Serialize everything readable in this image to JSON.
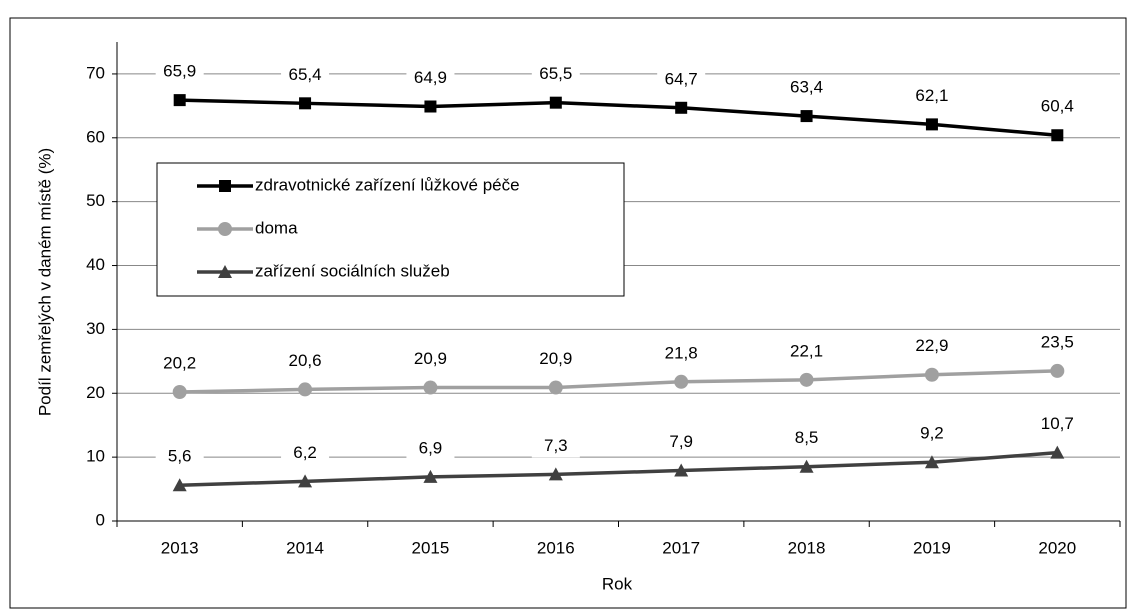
{
  "chart_data": {
    "type": "line",
    "categories": [
      "2013",
      "2014",
      "2015",
      "2016",
      "2017",
      "2018",
      "2019",
      "2020"
    ],
    "series": [
      {
        "name": "zdravotnické zařízení lůžkové péče",
        "color": "#000000",
        "marker": "square",
        "values": [
          65.9,
          65.4,
          64.9,
          65.5,
          64.7,
          63.4,
          62.1,
          60.4
        ],
        "value_labels": [
          "65,9",
          "65,4",
          "64,9",
          "65,5",
          "64,7",
          "63,4",
          "62,1",
          "60,4"
        ]
      },
      {
        "name": "doma",
        "color": "#a0a0a0",
        "marker": "circle",
        "values": [
          20.2,
          20.6,
          20.9,
          20.9,
          21.8,
          22.1,
          22.9,
          23.5
        ],
        "value_labels": [
          "20,2",
          "20,6",
          "20,9",
          "20,9",
          "21,8",
          "22,1",
          "22,9",
          "23,5"
        ]
      },
      {
        "name": "zařízení sociálních služeb",
        "color": "#404040",
        "marker": "triangle",
        "values": [
          5.6,
          6.2,
          6.9,
          7.3,
          7.9,
          8.5,
          9.2,
          10.7
        ],
        "value_labels": [
          "5,6",
          "6,2",
          "6,9",
          "7,3",
          "7,9",
          "8,5",
          "9,2",
          "10,7"
        ]
      }
    ],
    "x_label": "Rok",
    "y_label": "Podíl zemřelých v daném místě (%)",
    "ylim": [
      0,
      75
    ],
    "yticks": [
      0,
      10,
      20,
      30,
      40,
      50,
      60,
      70
    ],
    "grid": true,
    "legend": "upper left"
  }
}
